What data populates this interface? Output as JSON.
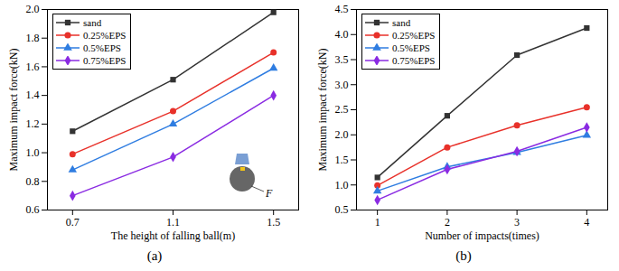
{
  "chart_data": [
    {
      "type": "line",
      "title": "(a)",
      "x_label": "The height of falling ball(m)",
      "y_label": "Maximum impact force(kN)",
      "x": [
        0.7,
        1.1,
        1.5
      ],
      "xlim": [
        0.6,
        1.6
      ],
      "xticks": [
        0.7,
        1.1,
        1.5
      ],
      "ylim": [
        0.6,
        2.0
      ],
      "yticks": [
        0.6,
        0.8,
        {
          "value": 1.0,
          "label": "1.0"
        },
        1.2,
        1.4,
        1.6,
        1.8,
        {
          "value": 2.0,
          "label": "2.0"
        }
      ],
      "grid": false,
      "legend": "top-left",
      "annotations": [
        {
          "text": "F"
        }
      ],
      "series": [
        {
          "name": "sand",
          "color": "#333333",
          "marker": "square",
          "values": [
            1.15,
            1.51,
            1.98
          ]
        },
        {
          "name": "0.25%EPS",
          "color": "#e8312a",
          "marker": "circle",
          "values": [
            0.99,
            1.29,
            1.7
          ]
        },
        {
          "name": "0.5%EPS",
          "color": "#2f7de1",
          "marker": "triangle",
          "values": [
            0.88,
            1.2,
            1.59
          ]
        },
        {
          "name": "0.75%EPS",
          "color": "#8a2be2",
          "marker": "diamond",
          "values": [
            0.7,
            0.97,
            1.4
          ]
        }
      ]
    },
    {
      "type": "line",
      "title": "(b)",
      "x_label": "Number of impacts(times)",
      "y_label": "Maximum impact force(kN)",
      "x": [
        1,
        2,
        3,
        4
      ],
      "xlim": [
        0.7,
        4.3
      ],
      "xticks": [
        1,
        2,
        3,
        4
      ],
      "ylim": [
        0.5,
        4.5
      ],
      "yticks": [
        0.5,
        {
          "value": 1.0,
          "label": "1.0"
        },
        1.5,
        {
          "value": 2.0,
          "label": "2.0"
        },
        2.5,
        {
          "value": 3.0,
          "label": "3.0"
        },
        3.5,
        {
          "value": 4.0,
          "label": "4.0"
        },
        4.5
      ],
      "grid": false,
      "legend": "top-left",
      "series": [
        {
          "name": "sand",
          "color": "#333333",
          "marker": "square",
          "values": [
            1.15,
            2.38,
            3.59,
            4.13
          ]
        },
        {
          "name": "0.25%EPS",
          "color": "#e8312a",
          "marker": "circle",
          "values": [
            0.99,
            1.75,
            2.19,
            2.55
          ]
        },
        {
          "name": "0.5%EPS",
          "color": "#2f7de1",
          "marker": "triangle",
          "values": [
            0.88,
            1.36,
            1.65,
            1.99
          ]
        },
        {
          "name": "0.75%EPS",
          "color": "#8a2be2",
          "marker": "diamond",
          "values": [
            0.7,
            1.31,
            1.67,
            2.15
          ]
        }
      ]
    }
  ]
}
